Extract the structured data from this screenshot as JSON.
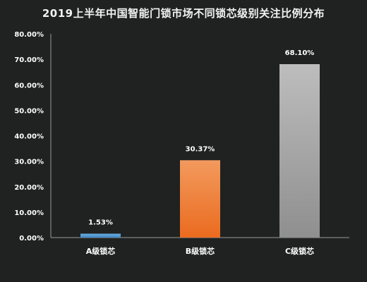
{
  "chart_data": {
    "type": "bar",
    "title": "2019上半年中国智能门锁市场不同锁芯级别关注比例分布",
    "xlabel": "",
    "ylabel": "",
    "categories": [
      "A级锁芯",
      "B级锁芯",
      "C级锁芯"
    ],
    "values": [
      1.53,
      30.37,
      68.1
    ],
    "data_labels": [
      "1.53%",
      "30.37%",
      "68.10%"
    ],
    "ylim": [
      0,
      80
    ],
    "yticks": [
      "0.00%",
      "10.00%",
      "20.00%",
      "30.00%",
      "40.00%",
      "50.00%",
      "60.00%",
      "70.00%",
      "80.00%"
    ],
    "grid": false,
    "legend": "none",
    "colors": {
      "A级锁芯": [
        "#6aaee0",
        "#3f86c4"
      ],
      "B级锁芯": [
        "#f39a5e",
        "#ea6b1f"
      ],
      "C级锁芯": [
        "#bdbdbd",
        "#8f8f8f"
      ]
    },
    "background": "#1f2220",
    "axis_color": "#9a9a9a"
  }
}
